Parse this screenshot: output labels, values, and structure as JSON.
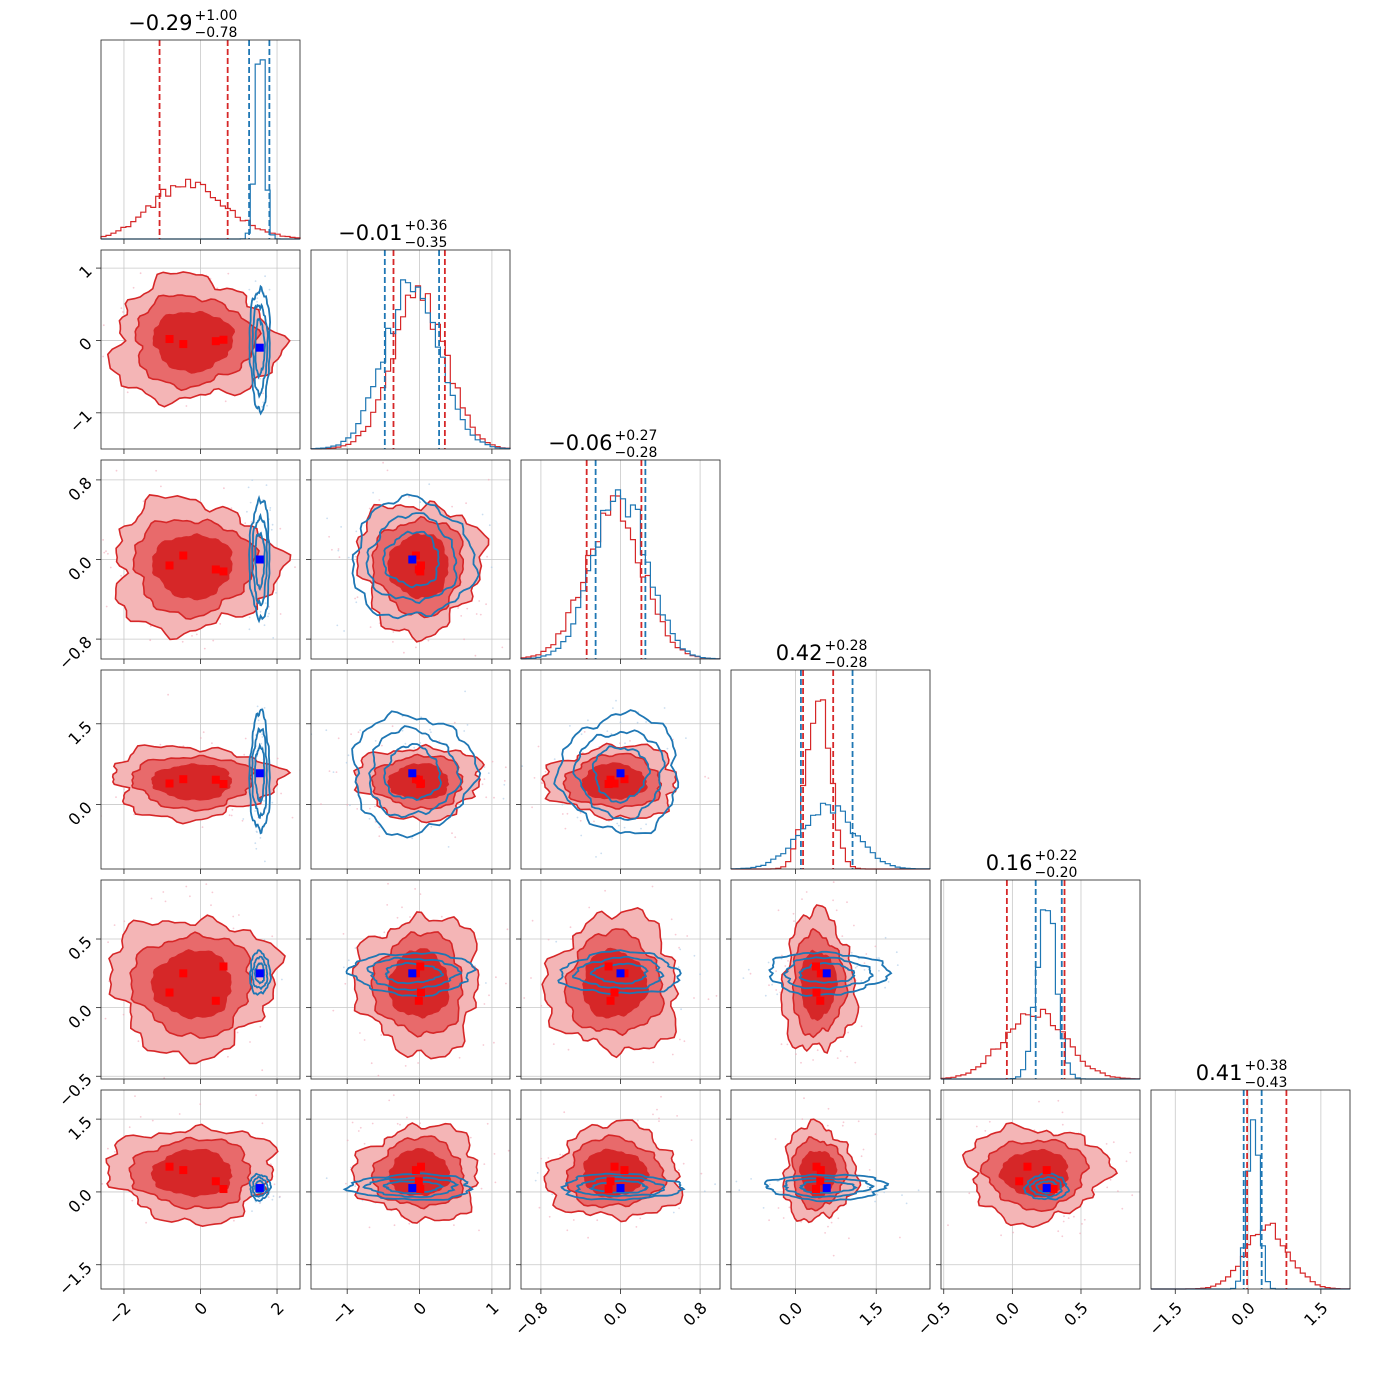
{
  "colors": {
    "red": "#d62728",
    "red_mid": "#e86a6b",
    "red_light": "#f4b5b6",
    "blue": "#1f77b4",
    "marker_red": "#ff0000",
    "marker_blue": "#0000ff",
    "grid": "#c8c8c8"
  },
  "chart_data": {
    "type": "corner",
    "grid": true,
    "parameters": [
      {
        "index": 0,
        "title_median": "−0.29",
        "title_plus": "+1.00",
        "title_minus": "−0.78",
        "range": [
          -2.6,
          2.6
        ],
        "ticks": [
          -2,
          0,
          2
        ],
        "tick_labels": [
          "−2",
          "0",
          "2"
        ],
        "quantiles_red": [
          -1.07,
          0.71
        ],
        "quantiles_blue": [
          1.27,
          1.8
        ],
        "blue_center": 1.55,
        "blue_sd": 0.12,
        "red_mode": -0.7
      },
      {
        "index": 1,
        "title_median": "−0.01",
        "title_plus": "+0.36",
        "title_minus": "−0.35",
        "range": [
          -1.5,
          1.25
        ],
        "ticks": [
          -1,
          0,
          1
        ],
        "tick_labels": [
          "−1",
          "0",
          "1"
        ],
        "quantiles_red": [
          -0.36,
          0.35
        ],
        "quantiles_blue": [
          -0.48,
          0.27
        ],
        "blue_center": -0.1,
        "blue_sd": 0.38,
        "red_mode": 0.0
      },
      {
        "index": 2,
        "title_median": "−0.06",
        "title_plus": "+0.27",
        "title_minus": "−0.28",
        "range": [
          -1.0,
          1.0
        ],
        "ticks": [
          -0.8,
          0.0,
          0.8
        ],
        "tick_labels": [
          "−0.8",
          "0.0",
          "0.8"
        ],
        "quantiles_red": [
          -0.34,
          0.21
        ],
        "quantiles_blue": [
          -0.25,
          0.25
        ],
        "blue_center": 0.0,
        "blue_sd": 0.27,
        "red_mode": 0.0
      },
      {
        "index": 3,
        "title_median": "0.42",
        "title_plus": "+0.28",
        "title_minus": "−0.28",
        "range": [
          -1.2,
          2.5
        ],
        "ticks": [
          0.0,
          1.5
        ],
        "tick_labels": [
          "0.0",
          "1.5"
        ],
        "quantiles_red": [
          0.14,
          0.7
        ],
        "quantiles_blue": [
          0.1,
          1.06
        ],
        "blue_center": 0.58,
        "blue_sd": 0.5,
        "red_mode": 0.42
      },
      {
        "index": 4,
        "title_median": "0.16",
        "title_plus": "+0.22",
        "title_minus": "−0.20",
        "range": [
          -0.52,
          0.93
        ],
        "ticks": [
          -0.5,
          0.0,
          0.5
        ],
        "tick_labels": [
          "−0.5",
          "0.0",
          "0.5"
        ],
        "quantiles_red": [
          -0.04,
          0.38
        ],
        "quantiles_blue": [
          0.17,
          0.36
        ],
        "blue_center": 0.25,
        "blue_sd": 0.07,
        "red_mode": 0.16
      },
      {
        "index": 5,
        "title_median": "0.41",
        "title_plus": "+0.38",
        "title_minus": "−0.43",
        "range": [
          -2.0,
          2.1
        ],
        "ticks": [
          -1.5,
          0.0,
          1.5
        ],
        "tick_labels": [
          "−1.5",
          "0.0",
          "1.5"
        ],
        "quantiles_red": [
          -0.02,
          0.79
        ],
        "quantiles_blue": [
          -0.09,
          0.28
        ],
        "blue_center": 0.1,
        "blue_sd": 0.12,
        "red_mode": 0.41
      }
    ],
    "red_markers": [
      [
        -0.81,
        0.02,
        -0.06,
        0.39,
        0.11,
        0.52
      ],
      [
        -0.45,
        -0.05,
        0.04,
        0.47,
        0.25,
        0.45
      ],
      [
        0.4,
        -0.01,
        -0.1,
        0.46,
        0.05,
        0.22
      ],
      [
        0.6,
        0.01,
        -0.12,
        0.38,
        0.3,
        0.06
      ]
    ],
    "blue_marker": [
      1.55,
      -0.1,
      0.0,
      0.58,
      0.25,
      0.08
    ]
  }
}
